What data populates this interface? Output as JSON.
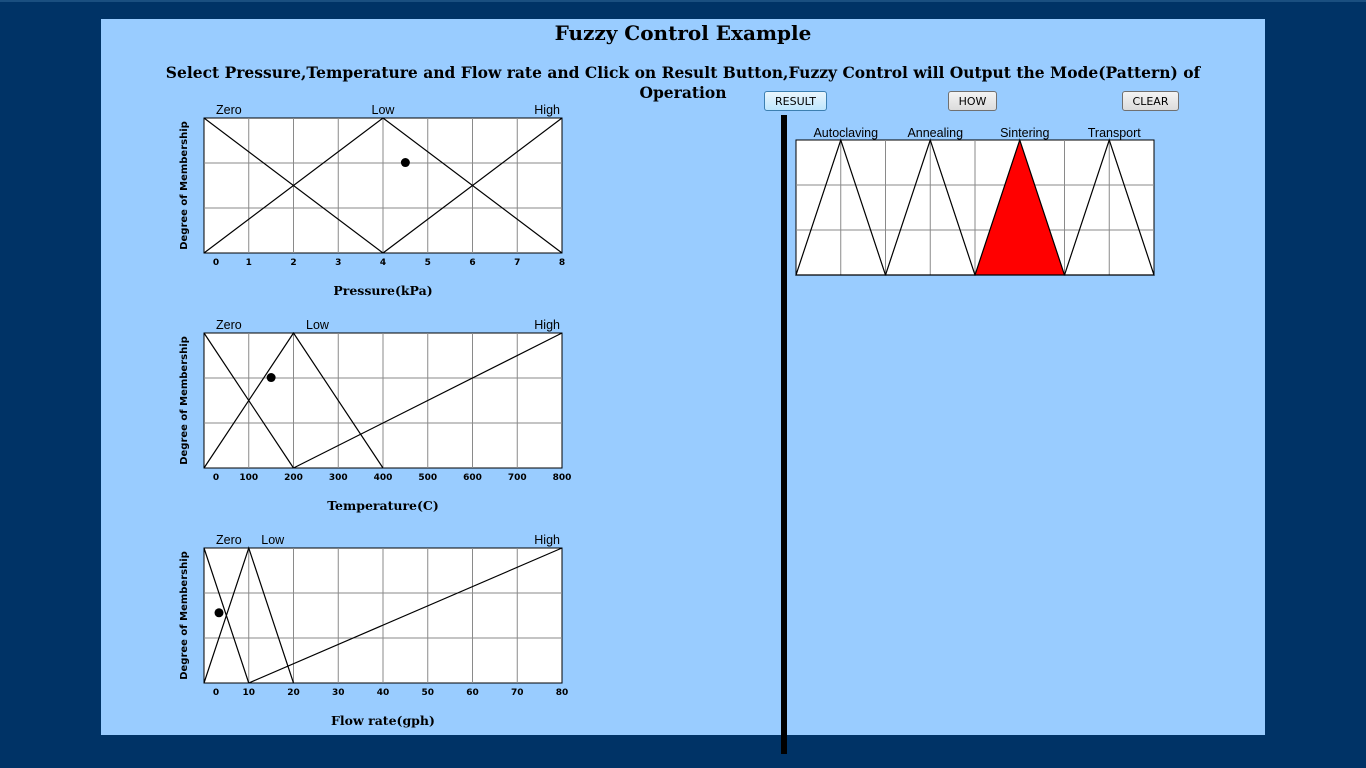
{
  "title": "Fuzzy Control Example",
  "instructions": "Select Pressure,Temperature and Flow rate and Click on Result Button,Fuzzy Control will Output the Mode(Pattern) of Operation",
  "buttons": {
    "result": "RESULT",
    "how": "HOW",
    "clear": "CLEAR"
  },
  "colors": {
    "page_bg": "#003366",
    "panel_bg": "#99ccff",
    "highlight": "#ff0000"
  },
  "chart_data": [
    {
      "type": "line",
      "ylabel": "Degree of Membership",
      "xlabel": "Pressure(kPa)",
      "xlim": [
        0,
        8
      ],
      "ylim": [
        0,
        1
      ],
      "x_ticks": [
        "0",
        "1",
        "2",
        "3",
        "4",
        "5",
        "6",
        "7",
        "8"
      ],
      "series": [
        {
          "name": "Zero",
          "points": [
            [
              0,
              1
            ],
            [
              4,
              0
            ]
          ]
        },
        {
          "name": "Low",
          "points": [
            [
              0,
              0
            ],
            [
              4,
              1
            ],
            [
              8,
              0
            ]
          ]
        },
        {
          "name": "High",
          "points": [
            [
              4,
              0
            ],
            [
              8,
              1
            ]
          ]
        }
      ],
      "selected": {
        "x": 4.5,
        "y": 0.67
      }
    },
    {
      "type": "line",
      "ylabel": "Degree of Membership",
      "xlabel": "Temperature(C)",
      "xlim": [
        0,
        800
      ],
      "ylim": [
        0,
        1
      ],
      "x_ticks": [
        "0",
        "100",
        "200",
        "300",
        "400",
        "500",
        "600",
        "700",
        "800"
      ],
      "series": [
        {
          "name": "Zero",
          "points": [
            [
              0,
              1
            ],
            [
              200,
              0
            ]
          ]
        },
        {
          "name": "Low",
          "points": [
            [
              0,
              0
            ],
            [
              200,
              1
            ],
            [
              400,
              0
            ]
          ]
        },
        {
          "name": "High",
          "points": [
            [
              200,
              0
            ],
            [
              800,
              1
            ]
          ]
        }
      ],
      "selected": {
        "x": 150,
        "y": 0.67
      }
    },
    {
      "type": "line",
      "ylabel": "Degree of Membership",
      "xlabel": "Flow rate(gph)",
      "xlim": [
        0,
        80
      ],
      "ylim": [
        0,
        1
      ],
      "x_ticks": [
        "0",
        "10",
        "20",
        "30",
        "40",
        "50",
        "60",
        "70",
        "80"
      ],
      "series": [
        {
          "name": "Zero",
          "points": [
            [
              0,
              1
            ],
            [
              10,
              0
            ]
          ]
        },
        {
          "name": "Low",
          "points": [
            [
              0,
              0
            ],
            [
              10,
              1
            ],
            [
              20,
              0
            ]
          ]
        },
        {
          "name": "High",
          "points": [
            [
              10,
              0
            ],
            [
              80,
              1
            ]
          ]
        }
      ],
      "selected": {
        "x": 3,
        "y": 0.52
      }
    },
    {
      "type": "area",
      "xlim": [
        0,
        8
      ],
      "ylim": [
        0,
        1
      ],
      "series": [
        {
          "name": "Autoclaving",
          "points": [
            [
              0,
              0
            ],
            [
              1,
              1
            ],
            [
              2,
              0
            ]
          ]
        },
        {
          "name": "Annealing",
          "points": [
            [
              2,
              0
            ],
            [
              3,
              1
            ],
            [
              4,
              0
            ]
          ]
        },
        {
          "name": "Sintering",
          "points": [
            [
              4,
              0
            ],
            [
              5,
              1
            ],
            [
              6,
              0
            ]
          ],
          "highlighted": true
        },
        {
          "name": "Transport",
          "points": [
            [
              6,
              0
            ],
            [
              7,
              1
            ],
            [
              8,
              0
            ]
          ]
        }
      ]
    }
  ]
}
